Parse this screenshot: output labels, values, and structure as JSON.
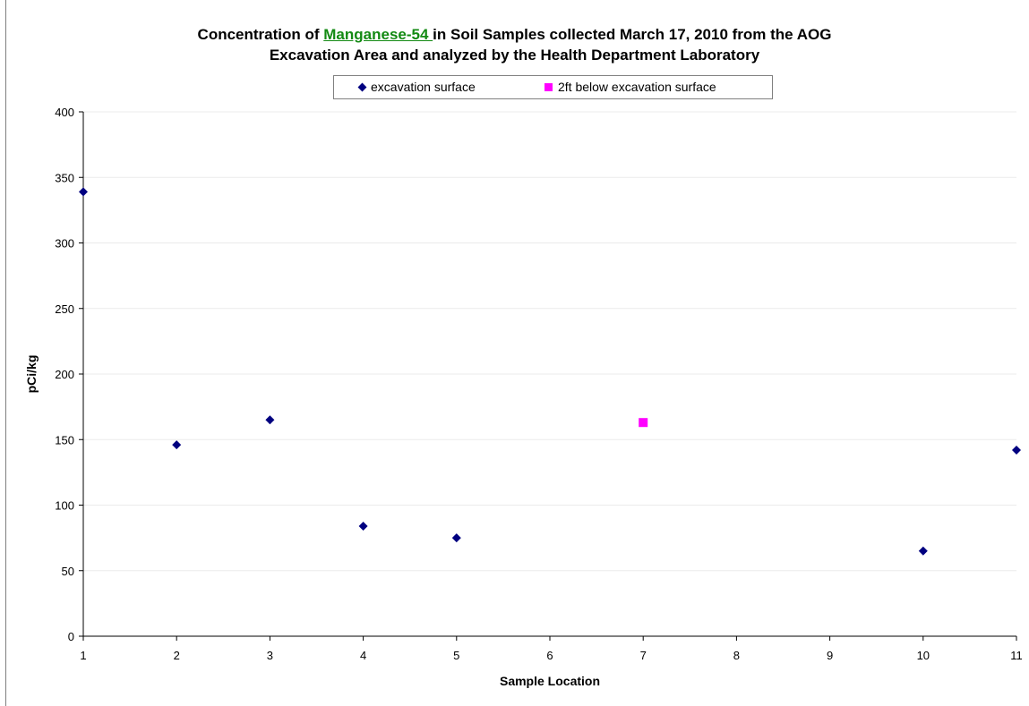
{
  "chart_data": {
    "type": "scatter",
    "title_prefix": "Concentration of ",
    "title_highlight": "Manganese-54 ",
    "title_suffix": " in Soil Samples collected March 17, 2010 from the AOG",
    "title_line2": "Excavation Area and analyzed by the Health Department Laboratory",
    "xlabel": "Sample Location",
    "ylabel": "pCi/kg",
    "x_categories": [
      "1",
      "2",
      "3",
      "4",
      "5",
      "6",
      "7",
      "8",
      "9",
      "10",
      "11"
    ],
    "yticks": [
      "0",
      "50",
      "100",
      "150",
      "200",
      "250",
      "300",
      "350",
      "400"
    ],
    "ylim": [
      0,
      400
    ],
    "grid": "horizontal",
    "legend_position": "top",
    "series": [
      {
        "name": "excavation surface",
        "marker": "diamond",
        "color": "#000080",
        "points": [
          {
            "x": "1",
            "y": 339
          },
          {
            "x": "2",
            "y": 146
          },
          {
            "x": "3",
            "y": 165
          },
          {
            "x": "4",
            "y": 84
          },
          {
            "x": "5",
            "y": 75
          },
          {
            "x": "10",
            "y": 65
          },
          {
            "x": "11",
            "y": 142
          }
        ]
      },
      {
        "name": "2ft below excavation surface",
        "marker": "square",
        "color": "#ff00ff",
        "points": [
          {
            "x": "7",
            "y": 163
          }
        ]
      }
    ]
  }
}
